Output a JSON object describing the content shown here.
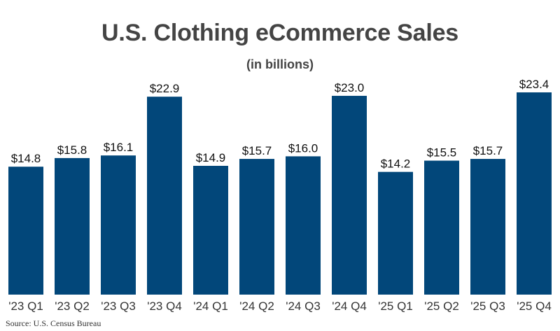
{
  "chart_data": {
    "type": "bar",
    "title": "U.S. Clothing eCommerce Sales",
    "subtitle": "(in billions)",
    "categories": [
      "'23 Q1",
      "'23 Q2",
      "'23 Q3",
      "'23 Q4",
      "'24 Q1",
      "'24 Q2",
      "'24 Q3",
      "'24 Q4",
      "'25 Q1",
      "'25 Q2",
      "'25 Q3",
      "'25 Q4"
    ],
    "values": [
      14.8,
      15.8,
      16.1,
      22.9,
      14.9,
      15.7,
      16.0,
      23.0,
      14.2,
      15.5,
      15.7,
      23.4
    ],
    "value_labels": [
      "$14.8",
      "$15.8",
      "$16.1",
      "$22.9",
      "$14.9",
      "$15.7",
      "$16.0",
      "$23.0",
      "$14.2",
      "$15.5",
      "$15.7",
      "$23.4"
    ],
    "xlabel": "",
    "ylabel": "",
    "ylim": [
      0,
      23.4
    ],
    "grid": false,
    "legend": "none",
    "bar_color": "#02477A"
  },
  "footer": {
    "source": "Source: U.S. Census Bureau"
  }
}
